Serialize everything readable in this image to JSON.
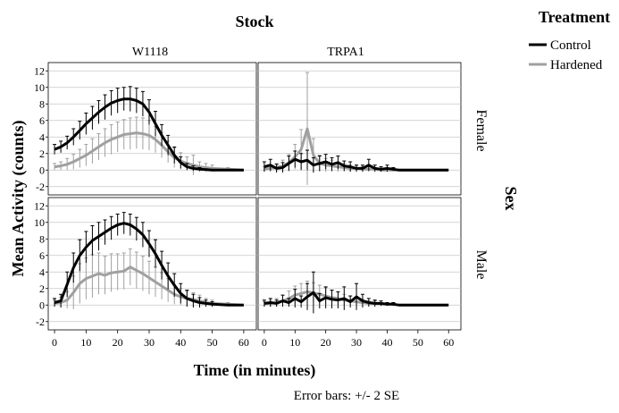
{
  "figure": {
    "column_title": "Stock",
    "row_title": "Sex",
    "ylabel": "Mean Activity (counts)",
    "xlabel": "Time (in minutes)",
    "note": "Error bars: +/- 2 SE"
  },
  "legend": {
    "title": "Treatment",
    "items": [
      {
        "label": "Control",
        "color": "#000000"
      },
      {
        "label": "Hardened",
        "color": "#a0a0a0"
      }
    ]
  },
  "chart_data": {
    "type": "line",
    "panels": [
      {
        "stock": "W1118",
        "sex": "Female",
        "series": [
          {
            "name": "Control",
            "x": [
              0,
              2,
              4,
              6,
              8,
              10,
              12,
              14,
              16,
              18,
              20,
              22,
              24,
              26,
              28,
              30,
              32,
              34,
              36,
              38,
              40,
              42,
              44,
              46,
              48,
              50,
              55,
              60
            ],
            "values": [
              2.5,
              2.8,
              3.3,
              4.0,
              4.8,
              5.6,
              6.3,
              7.0,
              7.6,
              8.1,
              8.4,
              8.6,
              8.6,
              8.4,
              8.0,
              7.0,
              5.6,
              4.2,
              3.0,
              1.8,
              0.9,
              0.4,
              0.2,
              0.1,
              0.05,
              0,
              0,
              0
            ],
            "se2": [
              0.6,
              0.7,
              0.8,
              1.0,
              1.1,
              1.3,
              1.4,
              1.4,
              1.5,
              1.5,
              1.5,
              1.4,
              1.5,
              1.5,
              1.5,
              1.5,
              1.5,
              1.3,
              1.2,
              1.0,
              0.7,
              0.4,
              0.3,
              0.2,
              0.1,
              0,
              0,
              0
            ]
          },
          {
            "name": "Hardened",
            "x": [
              0,
              2,
              4,
              6,
              8,
              10,
              12,
              14,
              16,
              18,
              20,
              22,
              24,
              26,
              28,
              30,
              32,
              34,
              36,
              38,
              40,
              42,
              44,
              46,
              48,
              50,
              55,
              60
            ],
            "values": [
              0.4,
              0.5,
              0.7,
              1.0,
              1.4,
              1.8,
              2.3,
              2.8,
              3.3,
              3.7,
              4.0,
              4.3,
              4.4,
              4.5,
              4.4,
              4.2,
              3.7,
              3.0,
              2.2,
              1.5,
              1.1,
              0.8,
              0.6,
              0.4,
              0.3,
              0.2,
              0.1,
              0
            ],
            "se2": [
              0.4,
              0.5,
              0.7,
              0.9,
              1.1,
              1.3,
              1.5,
              1.6,
              1.7,
              1.8,
              1.8,
              1.8,
              1.9,
              1.9,
              1.9,
              1.8,
              1.6,
              1.5,
              1.3,
              1.2,
              1.0,
              0.8,
              1.2,
              0.6,
              0.5,
              0.4,
              0.2,
              0
            ]
          }
        ]
      },
      {
        "stock": "TRPA1",
        "sex": "Female",
        "series": [
          {
            "name": "Control",
            "x": [
              0,
              2,
              4,
              6,
              8,
              10,
              12,
              14,
              16,
              18,
              20,
              22,
              24,
              26,
              28,
              30,
              32,
              34,
              36,
              38,
              40,
              42,
              44,
              46,
              48,
              50,
              55,
              60
            ],
            "values": [
              0.4,
              0.6,
              0.2,
              0.3,
              0.8,
              1.3,
              1.0,
              1.2,
              0.6,
              0.8,
              1.0,
              0.7,
              0.9,
              0.5,
              0.4,
              0.2,
              0.2,
              0.6,
              0.2,
              0.1,
              0.2,
              0.1,
              0,
              0,
              0,
              0,
              0,
              0
            ],
            "se2": [
              0.6,
              0.7,
              0.5,
              0.6,
              0.9,
              1.0,
              1.0,
              1.2,
              0.9,
              0.9,
              0.9,
              0.8,
              0.8,
              0.6,
              0.6,
              0.4,
              0.4,
              0.7,
              0.4,
              0.3,
              0.4,
              0.2,
              0,
              0,
              0,
              0,
              0,
              0
            ]
          },
          {
            "name": "Hardened",
            "x": [
              0,
              2,
              4,
              6,
              8,
              10,
              12,
              14,
              16,
              18,
              20,
              22,
              24,
              26,
              28,
              30,
              32,
              34,
              36,
              38,
              40,
              42,
              44,
              46,
              48,
              50,
              55,
              60
            ],
            "values": [
              0.1,
              0.2,
              0.3,
              0.5,
              0.9,
              1.6,
              2.5,
              5.0,
              1.8,
              0.8,
              0.6,
              0.5,
              0.4,
              0.3,
              0.2,
              0.2,
              0.1,
              0.1,
              0.1,
              0,
              0,
              0,
              0,
              0,
              0,
              0,
              0,
              0
            ],
            "se2": [
              0.3,
              0.4,
              0.5,
              0.7,
              1.0,
              1.5,
              2.4,
              6.8,
              2.0,
              1.0,
              0.8,
              0.7,
              0.6,
              0.5,
              0.4,
              0.4,
              0.3,
              0.3,
              0.2,
              0,
              0,
              0,
              0,
              0,
              0,
              0,
              0,
              0
            ]
          }
        ]
      },
      {
        "stock": "W1118",
        "sex": "Male",
        "series": [
          {
            "name": "Control",
            "x": [
              0,
              2,
              4,
              6,
              8,
              10,
              12,
              14,
              16,
              18,
              20,
              22,
              24,
              26,
              28,
              30,
              32,
              34,
              36,
              38,
              40,
              42,
              44,
              46,
              48,
              50,
              55,
              60
            ],
            "values": [
              0.3,
              0.5,
              2.5,
              4.5,
              6.0,
              7.0,
              7.8,
              8.3,
              8.8,
              9.3,
              9.7,
              9.9,
              9.7,
              9.2,
              8.5,
              7.4,
              6.2,
              4.8,
              3.5,
              2.4,
              1.4,
              0.8,
              0.5,
              0.3,
              0.2,
              0.1,
              0,
              0
            ],
            "se2": [
              0.5,
              0.8,
              1.5,
              1.8,
              1.9,
              1.9,
              1.8,
              1.7,
              1.5,
              1.4,
              1.3,
              1.3,
              1.3,
              1.4,
              1.5,
              1.6,
              1.7,
              1.7,
              1.6,
              1.4,
              1.2,
              1.0,
              0.8,
              0.6,
              0.4,
              0.3,
              0.1,
              0
            ]
          },
          {
            "name": "Hardened",
            "x": [
              0,
              2,
              4,
              6,
              8,
              10,
              12,
              14,
              16,
              18,
              20,
              22,
              24,
              26,
              28,
              30,
              32,
              34,
              36,
              38,
              40,
              42,
              44,
              46,
              48,
              50,
              55,
              60
            ],
            "values": [
              0.2,
              0.3,
              0.6,
              1.5,
              2.6,
              3.2,
              3.5,
              3.8,
              3.6,
              3.9,
              4.0,
              4.1,
              4.6,
              4.2,
              3.8,
              3.3,
              2.8,
              2.3,
              1.8,
              1.3,
              1.0,
              0.8,
              0.7,
              0.5,
              0.3,
              0.2,
              0.1,
              0
            ],
            "se2": [
              0.4,
              0.6,
              1.0,
              2.0,
              2.4,
              2.5,
              2.6,
              2.5,
              2.3,
              2.3,
              2.2,
              2.2,
              2.2,
              2.2,
              2.1,
              2.0,
              1.8,
              1.6,
              1.4,
              1.2,
              1.0,
              0.9,
              0.8,
              0.7,
              0.5,
              0.4,
              0.2,
              0
            ]
          }
        ]
      },
      {
        "stock": "TRPA1",
        "sex": "Male",
        "series": [
          {
            "name": "Control",
            "x": [
              0,
              2,
              4,
              6,
              8,
              10,
              12,
              14,
              16,
              18,
              20,
              22,
              24,
              26,
              28,
              30,
              32,
              34,
              36,
              38,
              40,
              42,
              44,
              46,
              48,
              50,
              55,
              60
            ],
            "values": [
              0.2,
              0.3,
              0.2,
              0.5,
              0.3,
              0.8,
              0.4,
              1.0,
              1.5,
              0.5,
              0.9,
              0.7,
              0.6,
              0.8,
              0.4,
              1.0,
              0.5,
              0.3,
              0.2,
              0.2,
              0.1,
              0.1,
              0,
              0,
              0,
              0,
              0,
              0
            ],
            "se2": [
              0.4,
              0.5,
              0.4,
              0.7,
              0.5,
              1.1,
              0.7,
              1.6,
              2.5,
              0.9,
              1.3,
              1.1,
              1.0,
              1.4,
              0.7,
              1.6,
              0.8,
              0.5,
              0.4,
              0.3,
              0.2,
              0.2,
              0,
              0,
              0,
              0,
              0,
              0
            ]
          },
          {
            "name": "Hardened",
            "x": [
              0,
              2,
              4,
              6,
              8,
              10,
              12,
              14,
              16,
              18,
              20,
              22,
              24,
              26,
              28,
              30,
              32,
              34,
              36,
              38,
              40,
              42,
              44,
              46,
              48,
              50,
              55,
              60
            ],
            "values": [
              0.1,
              0.2,
              0.3,
              0.5,
              0.8,
              1.2,
              1.4,
              1.6,
              1.5,
              1.3,
              1.1,
              0.9,
              0.8,
              0.6,
              0.5,
              0.4,
              0.3,
              0.2,
              0.2,
              0.1,
              0.1,
              0.1,
              0,
              0,
              0,
              0,
              0,
              0
            ],
            "se2": [
              0.3,
              0.4,
              0.5,
              0.7,
              0.9,
              1.1,
              1.2,
              1.3,
              1.2,
              1.1,
              1.0,
              0.9,
              0.8,
              0.7,
              0.6,
              0.5,
              0.4,
              0.3,
              0.3,
              0.2,
              0.2,
              0.2,
              0,
              0,
              0,
              0,
              0,
              0
            ]
          }
        ]
      }
    ],
    "xlim": [
      -2,
      64
    ],
    "ylim": [
      -3,
      13
    ],
    "xticks": [
      0,
      10,
      20,
      30,
      40,
      50,
      60
    ],
    "yticks": [
      -2,
      0,
      2,
      4,
      6,
      8,
      10,
      12
    ],
    "grid": true,
    "legend_position": "top-right"
  }
}
